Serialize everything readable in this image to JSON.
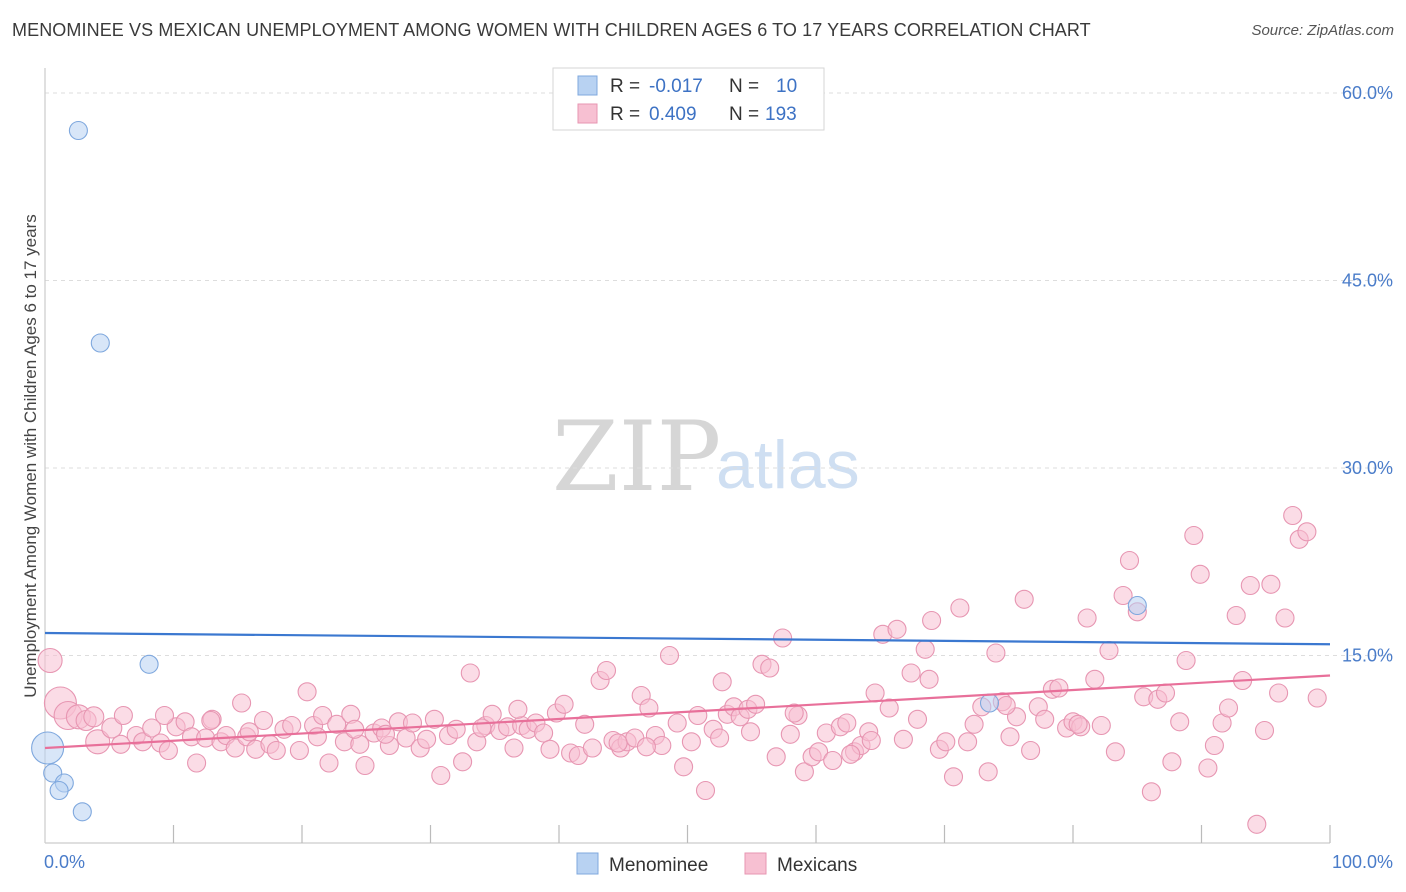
{
  "title": "MENOMINEE VS MEXICAN UNEMPLOYMENT AMONG WOMEN WITH CHILDREN AGES 6 TO 17 YEARS CORRELATION CHART",
  "source": "Source: ZipAtlas.com",
  "watermark": {
    "zip": "ZIP",
    "atlas": "atlas"
  },
  "colors": {
    "menominee": "#3b78d0",
    "mexicans": "#e8709a",
    "menominee_fill": "#b8d2f2",
    "mexicans_fill": "#f7c0d2",
    "tick": "#4a7cc9",
    "grid": "#dddddd"
  },
  "legend": {
    "rows": [
      {
        "r_label": "R =",
        "r_value": "-0.017",
        "n_label": "N =",
        "n_value": "10"
      },
      {
        "r_label": "R =",
        "r_value": "0.409",
        "n_label": "N =",
        "n_value": "193"
      }
    ]
  },
  "bottom_legend": [
    "Menominee",
    "Mexicans"
  ],
  "chart_data": {
    "type": "scatter",
    "ylabel": "Unemployment Among Women with Children Ages 6 to 17 years",
    "xlabel": "",
    "xlim": [
      0,
      100
    ],
    "ylim": [
      0,
      62
    ],
    "x_tick_labels": [
      "0.0%",
      "100.0%"
    ],
    "y_ticks": [
      15,
      30,
      45,
      60
    ],
    "y_tick_labels": [
      "15.0%",
      "30.0%",
      "45.0%",
      "60.0%"
    ],
    "grid": "horizontal dashed",
    "legend_position": "top-center",
    "series": [
      {
        "name": "Menominee",
        "trend": {
          "x": [
            0,
            100
          ],
          "y": [
            16.8,
            15.9
          ]
        },
        "points": [
          [
            0.2,
            7.6,
            16
          ],
          [
            0.6,
            5.6,
            9
          ],
          [
            1.5,
            4.8,
            9
          ],
          [
            1.1,
            4.2,
            9
          ],
          [
            2.9,
            2.5,
            9
          ],
          [
            2.6,
            57.0,
            9
          ],
          [
            4.3,
            40.0,
            9
          ],
          [
            8.1,
            14.3,
            9
          ],
          [
            73.5,
            11.2,
            9
          ],
          [
            85.0,
            19.0,
            9
          ]
        ]
      },
      {
        "name": "Mexicans",
        "trend": {
          "x": [
            0,
            100
          ],
          "y": [
            7.6,
            13.4
          ]
        },
        "points": [
          [
            0.4,
            14.6,
            12
          ],
          [
            1.2,
            11.2,
            16
          ],
          [
            1.8,
            10.2,
            14
          ],
          [
            2.6,
            10.1,
            12
          ],
          [
            3.2,
            9.8,
            10
          ],
          [
            4.1,
            8.1,
            12
          ],
          [
            5.2,
            9.2,
            10
          ],
          [
            6.1,
            10.2,
            9
          ],
          [
            7.1,
            8.6,
            9
          ],
          [
            7.6,
            8.1,
            9
          ],
          [
            8.3,
            9.2,
            9
          ],
          [
            9.0,
            8.0,
            9
          ],
          [
            9.6,
            7.4,
            9
          ],
          [
            10.2,
            9.3,
            9
          ],
          [
            10.9,
            9.7,
            9
          ],
          [
            11.4,
            8.5,
            9
          ],
          [
            11.8,
            6.4,
            9
          ],
          [
            12.5,
            8.4,
            9
          ],
          [
            13.0,
            9.9,
            9
          ],
          [
            13.7,
            8.1,
            9
          ],
          [
            14.1,
            8.6,
            9
          ],
          [
            14.8,
            7.6,
            9
          ],
          [
            15.3,
            11.2,
            9
          ],
          [
            15.7,
            8.5,
            9
          ],
          [
            16.4,
            7.5,
            9
          ],
          [
            17.0,
            9.8,
            9
          ],
          [
            17.5,
            7.9,
            9
          ],
          [
            18.0,
            7.4,
            9
          ],
          [
            18.6,
            9.1,
            9
          ],
          [
            19.2,
            9.4,
            9
          ],
          [
            19.8,
            7.4,
            9
          ],
          [
            20.4,
            12.1,
            9
          ],
          [
            20.9,
            9.4,
            9
          ],
          [
            21.6,
            10.2,
            9
          ],
          [
            22.1,
            6.4,
            9
          ],
          [
            22.7,
            9.5,
            9
          ],
          [
            23.3,
            8.1,
            9
          ],
          [
            23.8,
            10.3,
            9
          ],
          [
            24.5,
            7.9,
            9
          ],
          [
            24.9,
            6.2,
            9
          ],
          [
            25.6,
            8.8,
            9
          ],
          [
            26.2,
            9.2,
            9
          ],
          [
            26.8,
            7.8,
            9
          ],
          [
            27.5,
            9.7,
            9
          ],
          [
            28.1,
            8.4,
            9
          ],
          [
            28.6,
            9.6,
            9
          ],
          [
            29.2,
            7.6,
            9
          ],
          [
            29.7,
            8.3,
            9
          ],
          [
            30.3,
            9.9,
            9
          ],
          [
            30.8,
            5.4,
            9
          ],
          [
            31.4,
            8.6,
            9
          ],
          [
            32.0,
            9.1,
            9
          ],
          [
            32.5,
            6.5,
            9
          ],
          [
            33.1,
            13.6,
            9
          ],
          [
            33.6,
            8.1,
            9
          ],
          [
            34.3,
            9.4,
            9
          ],
          [
            34.8,
            10.3,
            9
          ],
          [
            35.4,
            9.0,
            9
          ],
          [
            36.0,
            9.3,
            9
          ],
          [
            36.5,
            7.6,
            9
          ],
          [
            37.1,
            9.4,
            9
          ],
          [
            37.6,
            9.1,
            9
          ],
          [
            38.2,
            9.6,
            9
          ],
          [
            38.8,
            8.8,
            9
          ],
          [
            39.3,
            7.5,
            9
          ],
          [
            39.8,
            10.4,
            9
          ],
          [
            40.4,
            11.1,
            9
          ],
          [
            40.9,
            7.2,
            9
          ],
          [
            41.5,
            7.0,
            9
          ],
          [
            42.0,
            9.5,
            9
          ],
          [
            42.6,
            7.6,
            9
          ],
          [
            43.2,
            13.0,
            9
          ],
          [
            43.7,
            13.8,
            9
          ],
          [
            44.2,
            8.2,
            9
          ],
          [
            44.8,
            7.6,
            9
          ],
          [
            45.3,
            8.1,
            9
          ],
          [
            45.9,
            8.4,
            9
          ],
          [
            46.4,
            11.8,
            9
          ],
          [
            47.0,
            10.8,
            9
          ],
          [
            47.5,
            8.6,
            9
          ],
          [
            48.0,
            7.8,
            9
          ],
          [
            48.6,
            15.0,
            9
          ],
          [
            49.2,
            9.6,
            9
          ],
          [
            49.7,
            6.1,
            9
          ],
          [
            50.3,
            8.1,
            9
          ],
          [
            50.8,
            10.2,
            9
          ],
          [
            51.4,
            4.2,
            9
          ],
          [
            52.0,
            9.1,
            9
          ],
          [
            52.5,
            8.4,
            9
          ],
          [
            53.1,
            10.3,
            9
          ],
          [
            53.6,
            10.9,
            9
          ],
          [
            54.1,
            10.1,
            9
          ],
          [
            54.7,
            10.7,
            9
          ],
          [
            55.3,
            11.1,
            9
          ],
          [
            55.8,
            14.3,
            9
          ],
          [
            56.4,
            14.0,
            9
          ],
          [
            56.9,
            6.9,
            9
          ],
          [
            57.4,
            16.4,
            9
          ],
          [
            58.0,
            8.7,
            9
          ],
          [
            58.6,
            10.2,
            9
          ],
          [
            59.1,
            5.7,
            9
          ],
          [
            59.7,
            6.9,
            9
          ],
          [
            60.2,
            7.3,
            9
          ],
          [
            60.8,
            8.8,
            9
          ],
          [
            61.3,
            6.6,
            9
          ],
          [
            61.9,
            9.3,
            9
          ],
          [
            62.4,
            9.6,
            9
          ],
          [
            63.0,
            7.3,
            9
          ],
          [
            63.5,
            7.8,
            9
          ],
          [
            64.1,
            8.9,
            9
          ],
          [
            64.6,
            12.0,
            9
          ],
          [
            65.2,
            16.7,
            9
          ],
          [
            65.7,
            10.8,
            9
          ],
          [
            66.3,
            17.1,
            9
          ],
          [
            66.8,
            8.3,
            9
          ],
          [
            67.4,
            13.6,
            9
          ],
          [
            67.9,
            9.9,
            9
          ],
          [
            68.5,
            15.5,
            9
          ],
          [
            69.0,
            17.8,
            9
          ],
          [
            69.6,
            7.5,
            9
          ],
          [
            70.1,
            8.1,
            9
          ],
          [
            70.7,
            5.3,
            9
          ],
          [
            71.2,
            18.8,
            9
          ],
          [
            71.8,
            8.1,
            9
          ],
          [
            72.3,
            9.5,
            9
          ],
          [
            72.9,
            10.9,
            9
          ],
          [
            73.4,
            5.7,
            9
          ],
          [
            74.0,
            15.2,
            9
          ],
          [
            74.5,
            11.3,
            9
          ],
          [
            75.1,
            8.5,
            9
          ],
          [
            75.6,
            10.1,
            9
          ],
          [
            76.2,
            19.5,
            9
          ],
          [
            76.7,
            7.4,
            9
          ],
          [
            77.3,
            10.9,
            9
          ],
          [
            77.8,
            9.9,
            9
          ],
          [
            78.4,
            12.3,
            9
          ],
          [
            78.9,
            12.4,
            9
          ],
          [
            79.5,
            9.2,
            9
          ],
          [
            80.0,
            9.7,
            9
          ],
          [
            80.6,
            9.3,
            9
          ],
          [
            81.1,
            18.0,
            9
          ],
          [
            81.7,
            13.1,
            9
          ],
          [
            82.2,
            9.4,
            9
          ],
          [
            82.8,
            15.4,
            9
          ],
          [
            83.3,
            7.3,
            9
          ],
          [
            83.9,
            19.8,
            9
          ],
          [
            84.4,
            22.6,
            9
          ],
          [
            85.0,
            18.5,
            9
          ],
          [
            85.5,
            11.7,
            9
          ],
          [
            86.1,
            4.1,
            9
          ],
          [
            86.6,
            11.5,
            9
          ],
          [
            87.2,
            12.0,
            9
          ],
          [
            87.7,
            6.5,
            9
          ],
          [
            88.3,
            9.7,
            9
          ],
          [
            88.8,
            14.6,
            9
          ],
          [
            89.4,
            24.6,
            9
          ],
          [
            89.9,
            21.5,
            9
          ],
          [
            90.5,
            6.0,
            9
          ],
          [
            91.0,
            7.8,
            9
          ],
          [
            91.6,
            9.6,
            9
          ],
          [
            92.1,
            10.8,
            9
          ],
          [
            92.7,
            18.2,
            9
          ],
          [
            93.2,
            13.0,
            9
          ],
          [
            93.8,
            20.6,
            9
          ],
          [
            94.3,
            1.5,
            9
          ],
          [
            94.9,
            9.0,
            9
          ],
          [
            95.4,
            20.7,
            9
          ],
          [
            96.0,
            12.0,
            9
          ],
          [
            96.5,
            18.0,
            9
          ],
          [
            97.1,
            26.2,
            9
          ],
          [
            97.6,
            24.3,
            9
          ],
          [
            98.2,
            24.9,
            9
          ],
          [
            99.0,
            11.6,
            9
          ],
          [
            12.9,
            9.8,
            9
          ],
          [
            21.2,
            8.5,
            9
          ],
          [
            26.5,
            8.7,
            9
          ],
          [
            36.8,
            10.7,
            9
          ],
          [
            46.8,
            7.7,
            9
          ],
          [
            54.9,
            8.9,
            9
          ],
          [
            64.3,
            8.2,
            9
          ],
          [
            3.8,
            10.1,
            10
          ],
          [
            5.9,
            7.9,
            9
          ],
          [
            9.3,
            10.2,
            9
          ],
          [
            15.9,
            8.9,
            9
          ],
          [
            24.1,
            9.1,
            9
          ],
          [
            34.0,
            9.2,
            9
          ],
          [
            44.6,
            8.0,
            9
          ],
          [
            52.7,
            12.9,
            9
          ],
          [
            58.3,
            10.4,
            9
          ],
          [
            62.7,
            7.1,
            9
          ],
          [
            68.8,
            13.1,
            9
          ],
          [
            74.8,
            11.0,
            9
          ],
          [
            80.4,
            9.5,
            9
          ]
        ]
      }
    ]
  }
}
